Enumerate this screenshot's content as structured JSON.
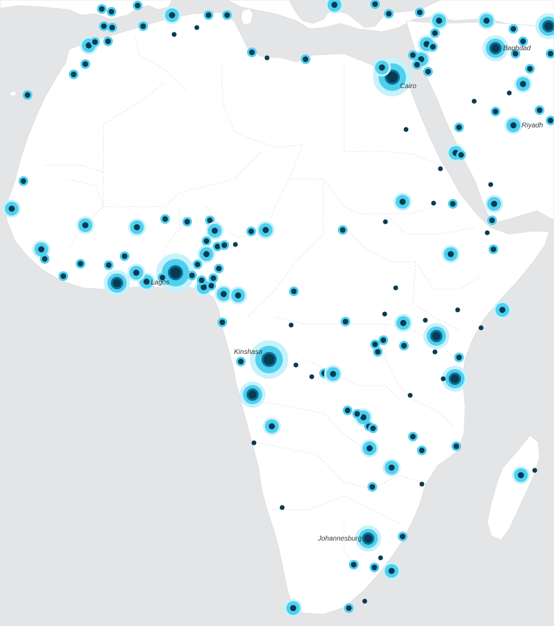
{
  "map": {
    "colors": {
      "water": "#e4e5e7",
      "land": "#ffffff",
      "halo": "#c8f2fb",
      "ring": "#4fd0f0",
      "core": "#0f6f93",
      "dot": "#073b52"
    },
    "labels": [
      {
        "id": "cairo",
        "text": "Cairo"
      },
      {
        "id": "baghdad",
        "text": "Baghdad"
      },
      {
        "id": "riyadh",
        "text": "Riyadh"
      },
      {
        "id": "lagos",
        "text": "Lagos"
      },
      {
        "id": "kinshasa",
        "text": "Kinshasa"
      },
      {
        "id": "johannesburg",
        "text": "Johannesburg"
      }
    ]
  }
}
